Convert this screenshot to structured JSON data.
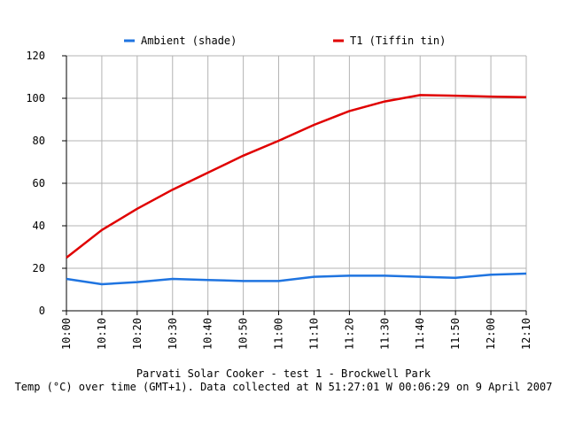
{
  "chart_data": {
    "type": "line",
    "title": "Parvati Solar Cooker - test 1 - Brockwell Park",
    "subtitle": "Temp (°C) over time (GMT+1). Data collected at N 51:27:01 W 00:06:29 on 9 April 2007",
    "xlabel": "",
    "ylabel": "",
    "ylim": [
      0,
      120
    ],
    "yticks": [
      "0",
      "20",
      "40",
      "60",
      "80",
      "100",
      "120"
    ],
    "categories": [
      "10:00",
      "10:10",
      "10:20",
      "10:30",
      "10:40",
      "10:50",
      "11:00",
      "11:10",
      "11:20",
      "11:30",
      "11:40",
      "11:50",
      "12:00",
      "12:10"
    ],
    "grid": true,
    "legend_position": "top",
    "series": [
      {
        "name": "Ambient (shade)",
        "color": "#1f74e0",
        "values": [
          15,
          12.5,
          13.5,
          15,
          14.5,
          14,
          14,
          16,
          16.5,
          16.5,
          16,
          15.5,
          17,
          17.5
        ]
      },
      {
        "name": "T1 (Tiffin tin)",
        "color": "#e00000",
        "values": [
          25,
          38,
          48,
          57,
          65,
          73,
          80,
          87.5,
          94,
          98.5,
          101.5,
          101.2,
          100.8,
          100.5
        ]
      }
    ]
  }
}
